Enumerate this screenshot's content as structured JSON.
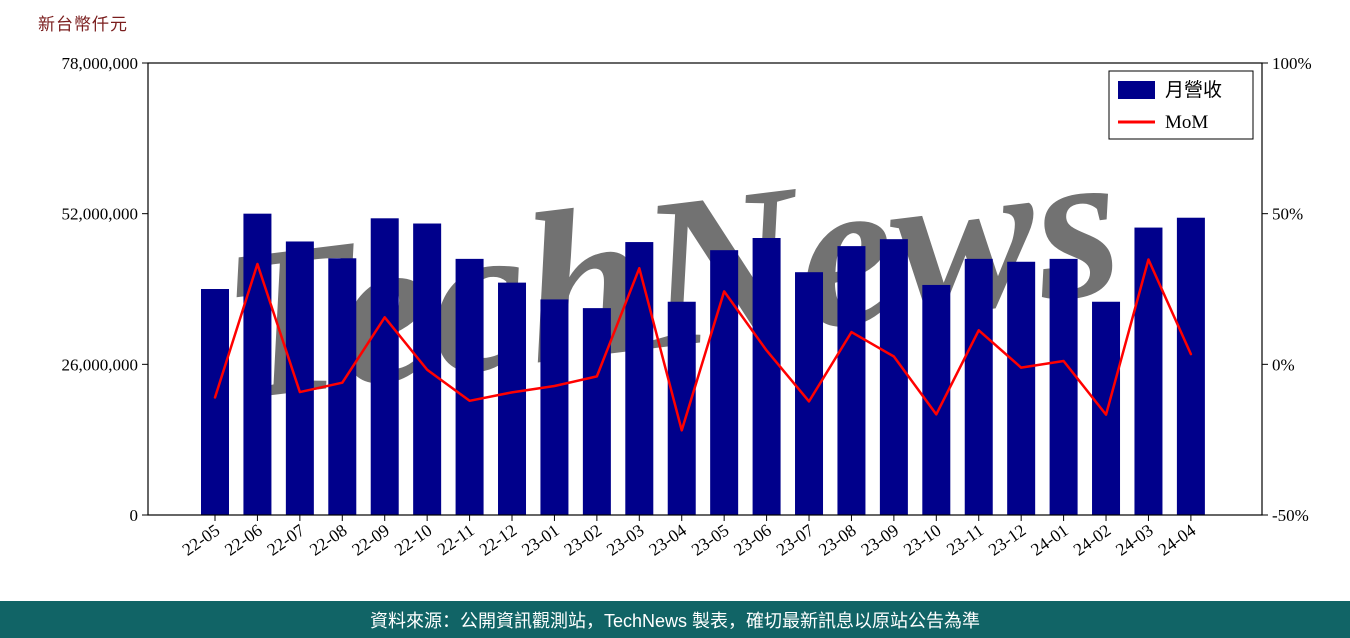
{
  "chart_data": {
    "type": "bar",
    "unit_label": "新台幣仟元",
    "categories": [
      "22-05",
      "22-06",
      "22-07",
      "22-08",
      "22-09",
      "22-10",
      "22-11",
      "22-12",
      "23-01",
      "23-02",
      "23-03",
      "23-04",
      "23-05",
      "23-06",
      "23-07",
      "23-08",
      "23-09",
      "23-10",
      "23-11",
      "23-12",
      "24-01",
      "24-02",
      "24-03",
      "24-04"
    ],
    "series": [
      {
        "name": "月營收",
        "type": "bar",
        "color": "#00008B",
        "values": [
          39000000,
          52000000,
          47200000,
          44300000,
          51200000,
          50300000,
          44200000,
          40100000,
          37200000,
          35700000,
          47100000,
          36800000,
          45700000,
          47800000,
          41900000,
          46400000,
          47600000,
          39700000,
          44200000,
          43700000,
          44200000,
          36800000,
          49600000,
          51300000
        ]
      },
      {
        "name": "MoM",
        "type": "line",
        "color": "#FF0000",
        "unit": "%",
        "values": [
          -11,
          33.3,
          -9.2,
          -6.1,
          15.6,
          -1.8,
          -12.1,
          -9.3,
          -7.2,
          -4.0,
          31.9,
          -21.9,
          24.2,
          4.6,
          -12.3,
          10.7,
          2.6,
          -16.6,
          11.3,
          -1.1,
          1.1,
          -16.7,
          34.8,
          3.4
        ]
      }
    ],
    "left_axis": {
      "ticks": [
        "0",
        "26,000,000",
        "52,000,000",
        "78,000,000"
      ],
      "tick_values": [
        0,
        26000000,
        52000000,
        78000000
      ],
      "ylim": [
        0,
        78000000
      ]
    },
    "right_axis": {
      "ticks": [
        "-50%",
        "0%",
        "50%",
        "100%"
      ],
      "tick_values": [
        -50,
        0,
        50,
        100
      ],
      "ylim": [
        -50,
        100
      ]
    },
    "legend": {
      "position": "top-right",
      "entries": [
        "月營收",
        "MoM"
      ]
    },
    "watermark": {
      "text": "TechNews",
      "color": "#F2C6C6"
    },
    "grid": false
  },
  "footer": {
    "text": "資料來源：公開資訊觀測站，TechNews 製表，確切最新訊息以原站公告為準",
    "background": "#116466",
    "color": "#ffffff"
  }
}
